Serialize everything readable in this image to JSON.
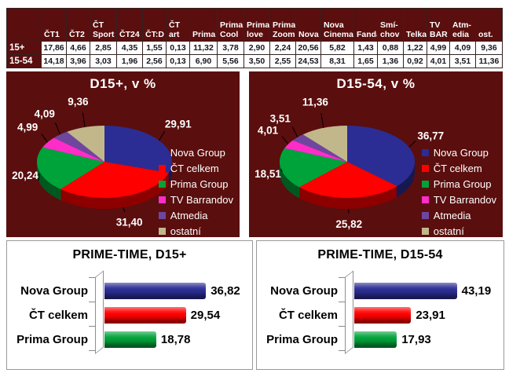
{
  "palette": {
    "panel_maroon": "#5a0e0e",
    "nova_navy": "#2b2d94",
    "ct_red": "#fe0000",
    "prima_green": "#00a23a",
    "barrandov_magenta": "#ff2cc9",
    "atmedia_purple": "#6f469e",
    "ostatni_tan": "#c2b78b"
  },
  "table": {
    "corner_label": "",
    "columns": [
      "ČT1",
      "ČT2",
      "ČT\nSport",
      "ČT24",
      "ČT:D",
      "ČT\nart",
      "Prima",
      "Prima\nCool",
      "Prima\nlove",
      "Prima\nZoom",
      "Nova",
      "Nova\nCinema",
      "Fanda",
      "Smí-\nchov",
      "Telka",
      "TV\nBAR",
      "Atm-\nedia",
      "ost."
    ],
    "rows": [
      {
        "label": "15+",
        "values": [
          "17,86",
          "4,66",
          "2,85",
          "4,35",
          "1,55",
          "0,13",
          "11,32",
          "3,78",
          "2,90",
          "2,24",
          "20,56",
          "5,82",
          "1,43",
          "0,88",
          "1,22",
          "4,99",
          "4,09",
          "9,36"
        ]
      },
      {
        "label": "15-54",
        "values": [
          "14,18",
          "3,96",
          "3,03",
          "1,96",
          "2,56",
          "0,13",
          "6,90",
          "5,56",
          "3,50",
          "2,55",
          "24,53",
          "8,31",
          "1,65",
          "1,36",
          "0,92",
          "4,01",
          "3,51",
          "11,36"
        ]
      }
    ]
  },
  "chart_data": [
    {
      "type": "pie",
      "title": "D15+, v %",
      "labels": [
        "Nova Group",
        "ČT celkem",
        "Prima Group",
        "TV Barrandov",
        "Atmedia",
        "ostatní"
      ],
      "values": [
        29.91,
        31.4,
        20.24,
        4.99,
        4.09,
        9.36
      ],
      "value_labels": [
        "29,91",
        "31,40",
        "20,24",
        "4,99",
        "4,09",
        "9,36"
      ],
      "colors": [
        "#2b2d94",
        "#fe0000",
        "#00a23a",
        "#ff2cc9",
        "#6f469e",
        "#c2b78b"
      ],
      "legend_position": "right",
      "background": "#5a0e0e",
      "effect": "3d"
    },
    {
      "type": "pie",
      "title": "D15-54, v %",
      "labels": [
        "Nova Group",
        "ČT celkem",
        "Prima Group",
        "TV Barrandov",
        "Atmedia",
        "ostatní"
      ],
      "values": [
        36.77,
        25.82,
        18.51,
        4.01,
        3.51,
        11.36
      ],
      "value_labels": [
        "36,77",
        "25,82",
        "18,51",
        "4,01",
        "3,51",
        "11,36"
      ],
      "colors": [
        "#2b2d94",
        "#fe0000",
        "#00a23a",
        "#ff2cc9",
        "#6f469e",
        "#c2b78b"
      ],
      "legend_position": "right",
      "background": "#5a0e0e",
      "effect": "3d"
    },
    {
      "type": "bar",
      "title": "PRIME-TIME, D15+",
      "orientation": "horizontal",
      "categories": [
        "Nova Group",
        "ČT celkem",
        "Prima Group"
      ],
      "values": [
        36.82,
        29.54,
        18.78
      ],
      "value_labels": [
        "36,82",
        "29,54",
        "18,78"
      ],
      "colors": [
        "#2b2d94",
        "#fe0000",
        "#00a23a"
      ],
      "grid": false,
      "effect": "3d"
    },
    {
      "type": "bar",
      "title": "PRIME-TIME, D15-54",
      "orientation": "horizontal",
      "categories": [
        "Nova Group",
        "ČT celkem",
        "Prima Group"
      ],
      "values": [
        43.19,
        23.91,
        17.93
      ],
      "value_labels": [
        "43,19",
        "23,91",
        "17,93"
      ],
      "colors": [
        "#2b2d94",
        "#fe0000",
        "#00a23a"
      ],
      "grid": false,
      "effect": "3d"
    }
  ]
}
